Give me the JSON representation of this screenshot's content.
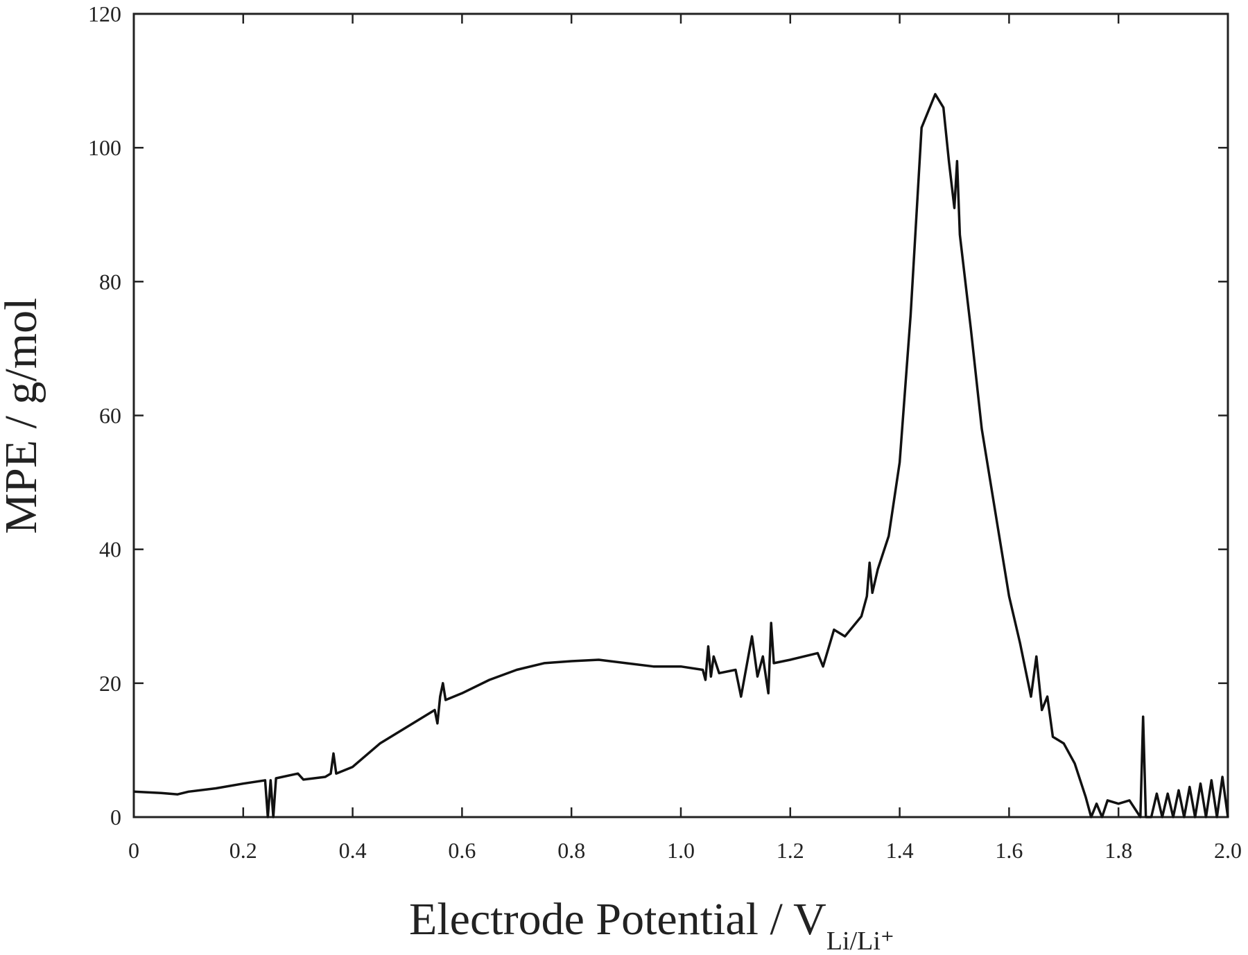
{
  "chart_data": {
    "type": "line",
    "xlabel": "Electrode Potential / V",
    "xlabel_subscript": "Li/Li⁺",
    "ylabel": "MPE / g/mol",
    "color": "#111111",
    "xlim": [
      0,
      2.0
    ],
    "xticks": [
      0,
      0.2,
      0.4,
      0.6,
      0.8,
      {
        "value": 1.0,
        "label": "1.0"
      },
      1.2,
      1.4,
      1.6,
      1.8,
      {
        "value": 2.0,
        "label": "2.0"
      }
    ],
    "ylim": [
      0,
      120
    ],
    "yticks": [
      0,
      20,
      40,
      60,
      80,
      100,
      120
    ],
    "x": [
      0,
      0.05,
      0.08,
      0.1,
      0.15,
      0.2,
      0.24,
      0.245,
      0.25,
      0.255,
      0.26,
      0.3,
      0.31,
      0.35,
      0.36,
      0.365,
      0.37,
      0.4,
      0.45,
      0.5,
      0.55,
      0.555,
      0.56,
      0.565,
      0.57,
      0.6,
      0.65,
      0.7,
      0.75,
      0.8,
      0.85,
      0.9,
      0.95,
      1.0,
      1.04,
      1.045,
      1.05,
      1.055,
      1.06,
      1.07,
      1.1,
      1.11,
      1.13,
      1.14,
      1.15,
      1.16,
      1.165,
      1.17,
      1.2,
      1.25,
      1.26,
      1.28,
      1.3,
      1.33,
      1.34,
      1.345,
      1.35,
      1.36,
      1.38,
      1.4,
      1.42,
      1.44,
      1.46,
      1.465,
      1.48,
      1.49,
      1.5,
      1.505,
      1.51,
      1.53,
      1.55,
      1.58,
      1.6,
      1.62,
      1.64,
      1.65,
      1.66,
      1.67,
      1.68,
      1.7,
      1.72,
      1.74,
      1.75,
      1.76,
      1.77,
      1.78,
      1.8,
      1.82,
      1.84,
      1.845,
      1.85,
      1.86,
      1.87,
      1.88,
      1.89,
      1.9,
      1.91,
      1.92,
      1.93,
      1.94,
      1.95,
      1.96,
      1.97,
      1.98,
      1.99,
      2.0
    ],
    "values": [
      3.8,
      3.6,
      3.4,
      3.8,
      4.3,
      5,
      5.5,
      0,
      5.5,
      0,
      5.8,
      6.5,
      5.6,
      6,
      6.5,
      9.5,
      6.5,
      7.5,
      11,
      13.5,
      16,
      14,
      18,
      20,
      17.5,
      18.5,
      20.5,
      22,
      23,
      23.3,
      23.5,
      23,
      22.5,
      22.5,
      22,
      20.5,
      25.5,
      21,
      24,
      21.5,
      22,
      18,
      27,
      21,
      24,
      18.5,
      29,
      23,
      23.5,
      24.5,
      22.5,
      28,
      27,
      30,
      33,
      38,
      33.5,
      37,
      42,
      53,
      75,
      103,
      107,
      108,
      106,
      98,
      91,
      98,
      87,
      73,
      58,
      43,
      33,
      26,
      18,
      24,
      16,
      18,
      12,
      11,
      8,
      3,
      0,
      2,
      0,
      2.5,
      2,
      2.5,
      0,
      15,
      0,
      0,
      3.5,
      0,
      3.5,
      0,
      4,
      0,
      4.5,
      0,
      5,
      0,
      5.5,
      0,
      6,
      0
    ]
  }
}
